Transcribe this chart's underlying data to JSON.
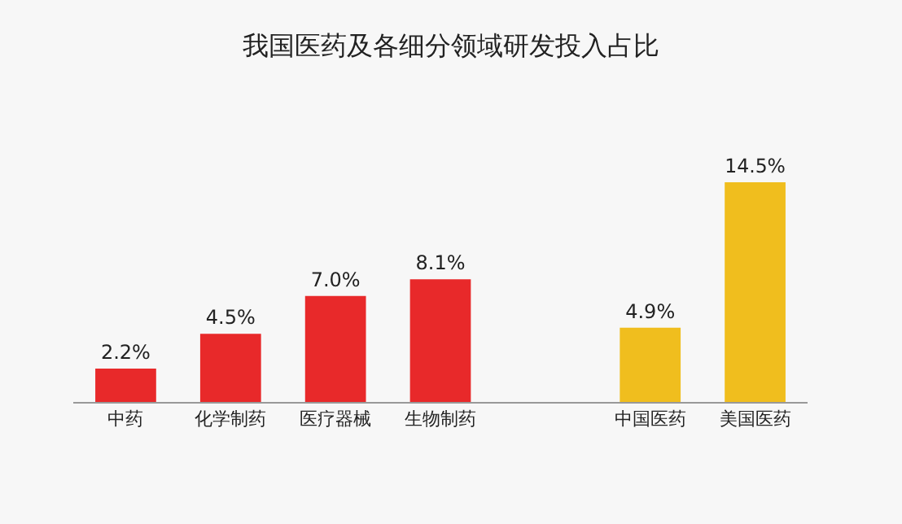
{
  "chart_data": {
    "type": "bar",
    "title": "我国医药及各细分领域研发投入占比",
    "categories": [
      "中药",
      "化学制药",
      "医疗器械",
      "生物制药",
      null,
      "中国医药",
      "美国医药"
    ],
    "values": [
      2.2,
      4.5,
      7.0,
      8.1,
      null,
      4.9,
      14.5
    ],
    "colors": [
      "#e8292a",
      "#e8292a",
      "#e8292a",
      "#e8292a",
      "#e8292a",
      "#f0be1e",
      "#f0be1e"
    ],
    "value_labels": [
      "2.2%",
      "4.5%",
      "7.0%",
      "8.1%",
      null,
      "4.9%",
      "14.5%"
    ],
    "grid": false,
    "legend": false
  }
}
